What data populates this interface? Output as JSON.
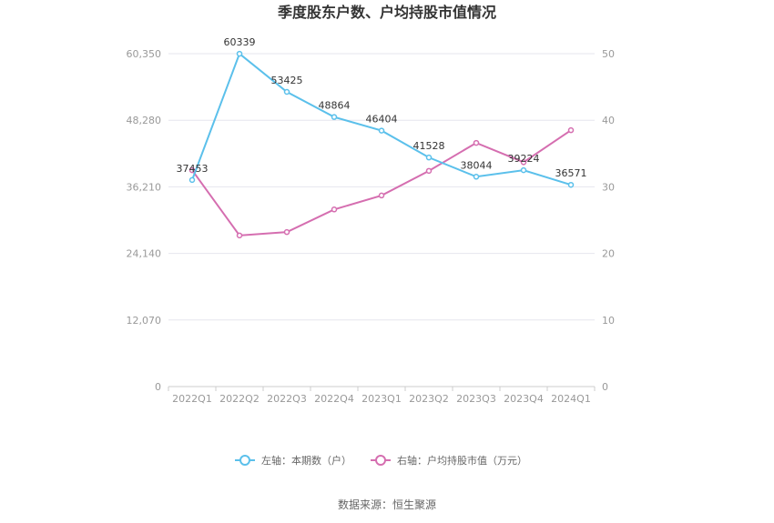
{
  "chart_data": {
    "type": "line",
    "title": "季度股东户数、户均持股市值情况",
    "categories": [
      "2022Q1",
      "2022Q2",
      "2022Q3",
      "2022Q4",
      "2023Q1",
      "2023Q2",
      "2023Q3",
      "2023Q4",
      "2024Q1"
    ],
    "left_axis": {
      "ticks": [
        "0",
        "12,070",
        "24,140",
        "36,210",
        "48,280",
        "60,350"
      ],
      "ylim": [
        0,
        60350
      ]
    },
    "right_axis": {
      "ticks": [
        "0",
        "10",
        "20",
        "30",
        "40",
        "50"
      ],
      "ylim": [
        0,
        50
      ]
    },
    "series": [
      {
        "name": "左轴：本期数（户）",
        "axis": "left",
        "color": "#5bc0eb",
        "values": [
          37453,
          60339,
          53425,
          48864,
          46404,
          41528,
          38044,
          39224,
          36571
        ],
        "labels": [
          "37453",
          "60339",
          "53425",
          "48864",
          "46404",
          "41528",
          "38044",
          "39224",
          "36571"
        ]
      },
      {
        "name": "右轴：户均持股市值（万元）",
        "axis": "right",
        "color": "#d56eb0",
        "values": [
          32.5,
          22.7,
          23.2,
          26.6,
          28.7,
          32.4,
          36.6,
          33.7,
          38.5
        ]
      }
    ],
    "grid": true,
    "legend_position": "bottom"
  },
  "source_text": "数据来源：恒生聚源"
}
